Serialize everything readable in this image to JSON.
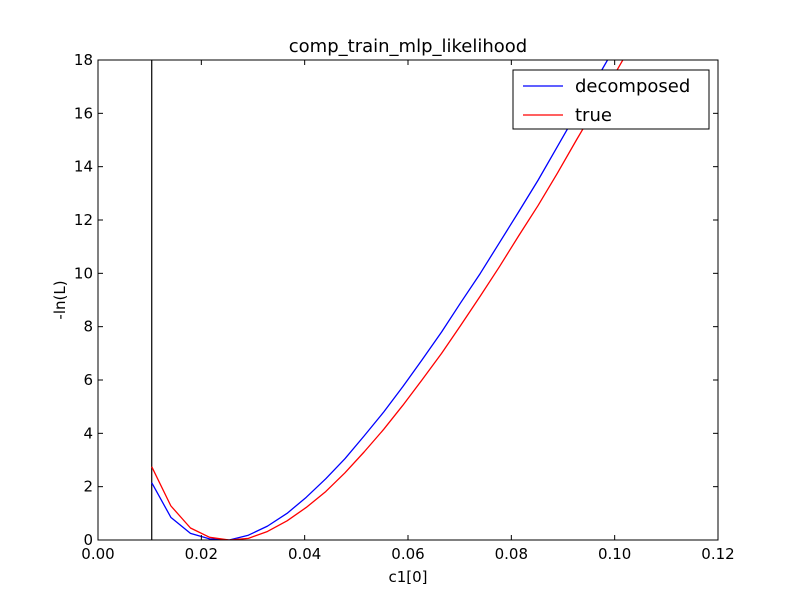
{
  "chart_data": {
    "type": "line",
    "title": "comp_train_mlp_likelihood",
    "xlabel": "c1[0]",
    "ylabel": "-ln(L)",
    "xlim": [
      0.0,
      0.12
    ],
    "ylim": [
      0,
      18
    ],
    "x_ticks": [
      0.0,
      0.02,
      0.04,
      0.06,
      0.08,
      0.1,
      0.12
    ],
    "x_tick_labels": [
      "0.00",
      "0.02",
      "0.04",
      "0.06",
      "0.08",
      "0.10",
      "0.12"
    ],
    "y_ticks": [
      0,
      2,
      4,
      6,
      8,
      10,
      12,
      14,
      16,
      18
    ],
    "y_tick_labels": [
      "0",
      "2",
      "4",
      "6",
      "8",
      "10",
      "12",
      "14",
      "16",
      "18"
    ],
    "grid": false,
    "legend_position": "top-right",
    "vertical_line_x": 0.0104,
    "series": [
      {
        "name": "decomposed",
        "color": "#0000ff",
        "x": [
          0.0104,
          0.0141,
          0.0179,
          0.0216,
          0.0254,
          0.0291,
          0.0328,
          0.0366,
          0.0403,
          0.0441,
          0.0478,
          0.0515,
          0.0553,
          0.059,
          0.0627,
          0.0665,
          0.0702,
          0.074,
          0.0777,
          0.0814,
          0.0852,
          0.0889,
          0.0926,
          0.0964,
          0.1001
        ],
        "y": [
          2.15,
          0.85,
          0.25,
          0.04,
          0.0,
          0.18,
          0.52,
          1.0,
          1.6,
          2.3,
          3.05,
          3.9,
          4.8,
          5.75,
          6.75,
          7.8,
          8.9,
          10.0,
          11.15,
          12.3,
          13.5,
          14.75,
          16.0,
          17.25,
          18.5
        ]
      },
      {
        "name": "true",
        "color": "#ff0000",
        "x": [
          0.0104,
          0.0141,
          0.0179,
          0.0216,
          0.0254,
          0.0291,
          0.0328,
          0.0366,
          0.0403,
          0.0441,
          0.0478,
          0.0515,
          0.0553,
          0.059,
          0.0627,
          0.0665,
          0.0702,
          0.074,
          0.0777,
          0.0814,
          0.0852,
          0.0889,
          0.0926,
          0.0964,
          0.1001,
          0.1038
        ],
        "y": [
          2.75,
          1.28,
          0.45,
          0.1,
          0.0,
          0.06,
          0.32,
          0.72,
          1.22,
          1.82,
          2.52,
          3.3,
          4.15,
          5.05,
          6.0,
          7.0,
          8.05,
          9.15,
          10.25,
          11.4,
          12.55,
          13.75,
          15.0,
          16.25,
          17.5,
          18.75
        ]
      }
    ]
  }
}
